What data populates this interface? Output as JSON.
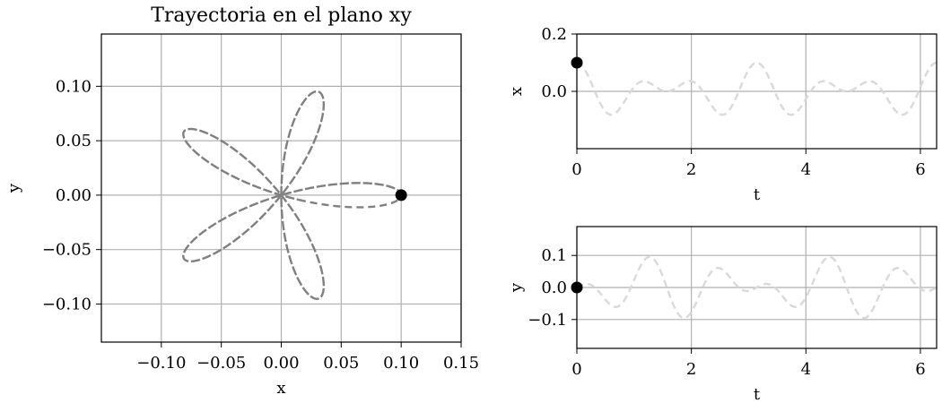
{
  "chart_data": [
    {
      "type": "line",
      "title": "Trayectoria en el plano xy",
      "xlabel": "x",
      "ylabel": "y",
      "xlim": [
        -0.15,
        0.15
      ],
      "ylim": [
        -0.135,
        0.148
      ],
      "xticks": [
        -0.1,
        -0.05,
        0.0,
        0.05,
        0.1,
        0.15
      ],
      "xtick_labels": [
        "−0.10",
        "−0.05",
        "0.00",
        "0.05",
        "0.10",
        "0.15"
      ],
      "yticks": [
        -0.1,
        -0.05,
        0.0,
        0.05,
        0.1
      ],
      "ytick_labels": [
        "−0.10",
        "−0.05",
        "0.00",
        "0.05",
        "0.10"
      ],
      "grid": true,
      "series": [
        {
          "style": "dashed",
          "color": "#808080",
          "curve": {
            "kind": "rose",
            "amplitude": 0.1,
            "freq_x": 1,
            "freq_y": 5,
            "t_start": 0,
            "t_end": 6.0
          }
        }
      ],
      "marker": {
        "x": 0.1,
        "y": 0.0,
        "color": "#000000"
      }
    },
    {
      "type": "line",
      "xlabel": "t",
      "ylabel": "x",
      "xlim": [
        0,
        6.283
      ],
      "ylim": [
        -0.2,
        0.2
      ],
      "xticks": [
        0,
        2,
        4,
        6
      ],
      "xtick_labels": [
        "0",
        "2",
        "4",
        "6"
      ],
      "yticks": [
        0.0,
        0.2
      ],
      "ytick_labels": [
        "0.0",
        "0.2"
      ],
      "grid": true,
      "series": [
        {
          "style": "dashed",
          "color": "#d9d9d9",
          "curve": {
            "kind": "x",
            "amplitude": 0.1,
            "freq_x": 1,
            "freq_y": 5
          }
        }
      ],
      "marker": {
        "x": 0,
        "y": 0.1,
        "color": "#000000"
      }
    },
    {
      "type": "line",
      "xlabel": "t",
      "ylabel": "y",
      "xlim": [
        0,
        6.283
      ],
      "ylim": [
        -0.19,
        0.19
      ],
      "xticks": [
        0,
        2,
        4,
        6
      ],
      "xtick_labels": [
        "0",
        "2",
        "4",
        "6"
      ],
      "yticks": [
        -0.1,
        0.0,
        0.1
      ],
      "ytick_labels": [
        "−0.1",
        "0.0",
        "0.1"
      ],
      "grid": true,
      "series": [
        {
          "style": "dashed",
          "color": "#d9d9d9",
          "curve": {
            "kind": "y",
            "amplitude": 0.1,
            "freq_x": 1,
            "freq_y": 5
          }
        }
      ],
      "marker": {
        "x": 0,
        "y": 0.0,
        "color": "#000000"
      }
    }
  ]
}
